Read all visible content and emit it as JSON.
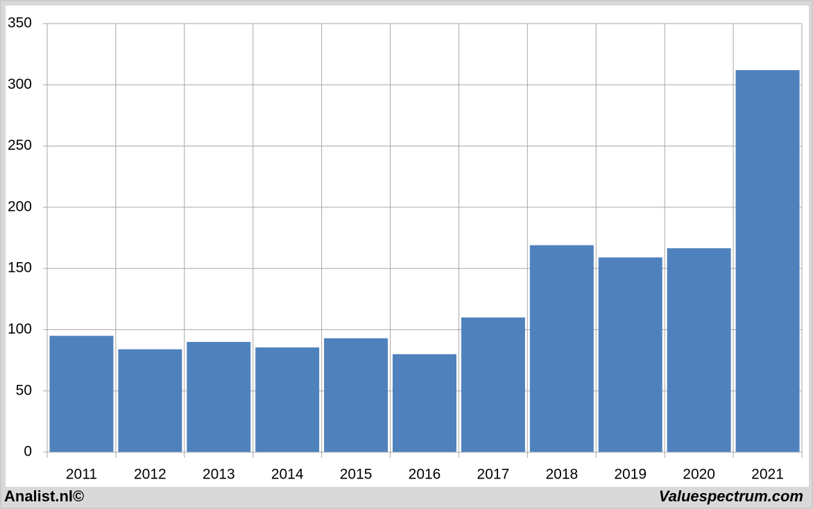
{
  "chart_data": {
    "type": "bar",
    "categories": [
      "2011",
      "2012",
      "2013",
      "2014",
      "2015",
      "2016",
      "2017",
      "2018",
      "2019",
      "2020",
      "2021"
    ],
    "values": [
      95,
      84,
      90,
      85.5,
      93,
      80,
      110,
      169,
      159,
      166.5,
      312
    ],
    "color": "#4f81bd",
    "ylim": [
      0,
      350
    ],
    "yticks": [
      0,
      50,
      100,
      150,
      200,
      250,
      300,
      350
    ],
    "grid": true,
    "credit_left": "Analist.nl©",
    "credit_right": "Valuespectrum.com"
  }
}
